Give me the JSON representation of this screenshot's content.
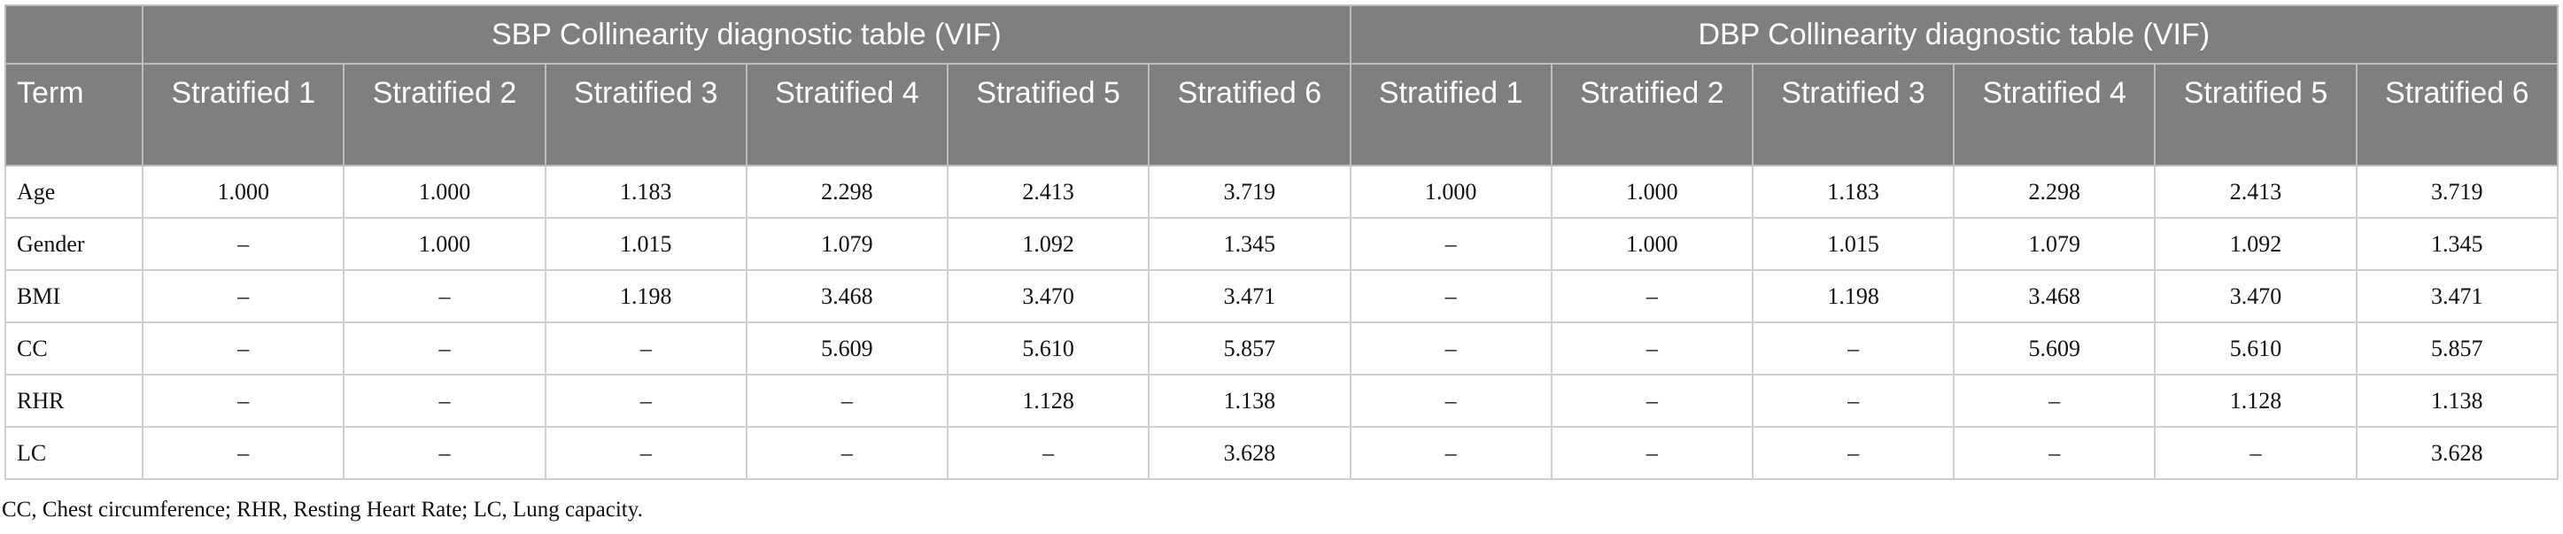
{
  "table": {
    "groups": [
      "SBP Collinearity diagnostic table (VIF)",
      "DBP Collinearity diagnostic table (VIF)"
    ],
    "columns": [
      "Term",
      "Stratified 1",
      "Stratified 2",
      "Stratified 3",
      "Stratified 4",
      "Stratified 5",
      "Stratified 6",
      "Stratified 1",
      "Stratified 2",
      "Stratified 3",
      "Stratified 4",
      "Stratified 5",
      "Stratified 6"
    ],
    "rows": [
      [
        "Age",
        "1.000",
        "1.000",
        "1.183",
        "2.298",
        "2.413",
        "3.719",
        "1.000",
        "1.000",
        "1.183",
        "2.298",
        "2.413",
        "3.719"
      ],
      [
        "Gender",
        "–",
        "1.000",
        "1.015",
        "1.079",
        "1.092",
        "1.345",
        "–",
        "1.000",
        "1.015",
        "1.079",
        "1.092",
        "1.345"
      ],
      [
        "BMI",
        "–",
        "–",
        "1.198",
        "3.468",
        "3.470",
        "3.471",
        "–",
        "–",
        "1.198",
        "3.468",
        "3.470",
        "3.471"
      ],
      [
        "CC",
        "–",
        "–",
        "–",
        "5.609",
        "5.610",
        "5.857",
        "–",
        "–",
        "–",
        "5.609",
        "5.610",
        "5.857"
      ],
      [
        "RHR",
        "–",
        "–",
        "–",
        "–",
        "1.128",
        "1.138",
        "–",
        "–",
        "–",
        "–",
        "1.128",
        "1.138"
      ],
      [
        "LC",
        "–",
        "–",
        "–",
        "–",
        "–",
        "3.628",
        "–",
        "–",
        "–",
        "–",
        "–",
        "3.628"
      ]
    ]
  },
  "footnote": "CC, Chest circumference; RHR, Resting Heart Rate; LC, Lung capacity."
}
